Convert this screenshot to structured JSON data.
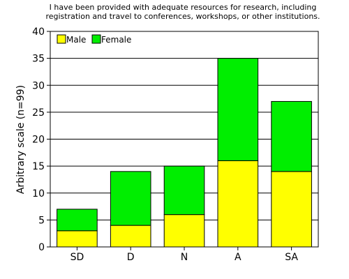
{
  "chart_data": {
    "type": "bar",
    "stacked": true,
    "title_lines": [
      "I have been provided with adequate resources for research, including",
      "registration and travel to conferences, workshops, or other institutions."
    ],
    "xlabel": "",
    "ylabel": "Arbitrary scale (n=99)",
    "categories": [
      "SD",
      "D",
      "N",
      "A",
      "SA"
    ],
    "series": [
      {
        "name": "Male",
        "color": "#ffff00",
        "values": [
          3,
          4,
          6,
          16,
          14
        ]
      },
      {
        "name": "Female",
        "color": "#00ee00",
        "values": [
          4,
          10,
          9,
          19,
          13
        ]
      }
    ],
    "ylim": [
      0,
      40
    ],
    "yticks": [
      0,
      5,
      10,
      15,
      20,
      25,
      30,
      35,
      40
    ],
    "grid": "horizontal",
    "legend_position": "top-left"
  }
}
